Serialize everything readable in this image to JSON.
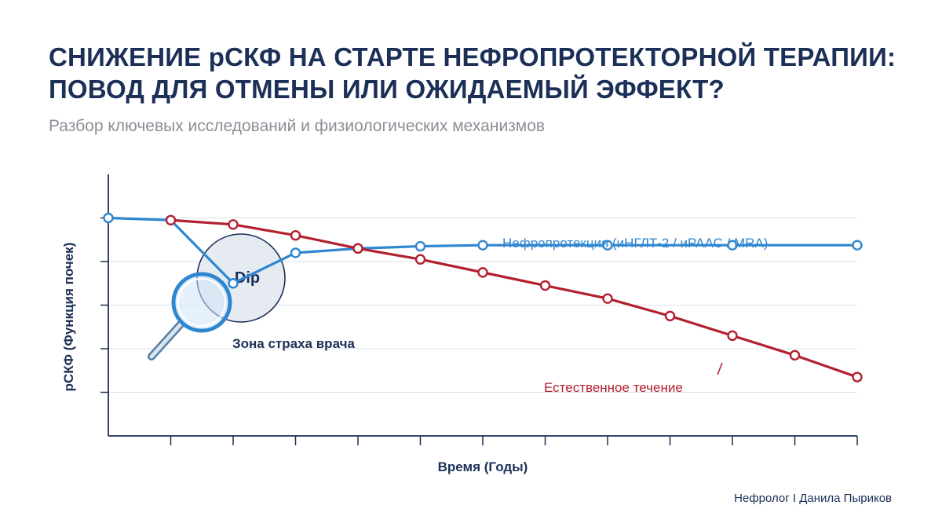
{
  "title_line1": "СНИЖЕНИЕ рСКФ НА СТАРТЕ НЕФРОПРОТЕКТОРНОЙ ТЕРАПИИ:",
  "title_line2": "ПОВОД ДЛЯ ОТМЕНЫ ИЛИ ОЖИДАЕМЫЙ ЭФФЕКТ?",
  "subtitle": "Разбор ключевых исследований и физиологических механизмов",
  "footer": "Нефролог I Данила Пыриков",
  "colors": {
    "title": "#1b2f57",
    "blue": "#2f86d1",
    "red": "#b3202f",
    "axis": "#1b2f57"
  },
  "chart_data": {
    "type": "line",
    "xlabel": "Время (Годы)",
    "ylabel": "рСКФ (Функция почек)",
    "grid": true,
    "annotations": {
      "dip": "Dip",
      "fear_zone": "Зона страха врача",
      "magnifier_icon": "magnifier-icon"
    },
    "series": [
      {
        "name": "Нефропротекция (иНГЛТ-2 / иРААС / MRA)",
        "color": "#2f86d1",
        "points": [
          [
            0,
            100
          ],
          [
            1,
            99
          ],
          [
            2,
            70
          ],
          [
            3,
            84
          ],
          [
            4,
            86
          ],
          [
            5,
            87
          ],
          [
            6,
            87.5
          ],
          [
            8,
            87.5
          ],
          [
            10,
            87.5
          ],
          [
            12,
            87.5
          ]
        ]
      },
      {
        "name": "Естественное течение",
        "color": "#b3202f",
        "points": [
          [
            1,
            99
          ],
          [
            2,
            97
          ],
          [
            3,
            92
          ],
          [
            4,
            86
          ],
          [
            5,
            81
          ],
          [
            6,
            75
          ],
          [
            7,
            69
          ],
          [
            8,
            63
          ],
          [
            9,
            55
          ],
          [
            10,
            46
          ],
          [
            11,
            37
          ],
          [
            12,
            27
          ]
        ]
      }
    ]
  }
}
